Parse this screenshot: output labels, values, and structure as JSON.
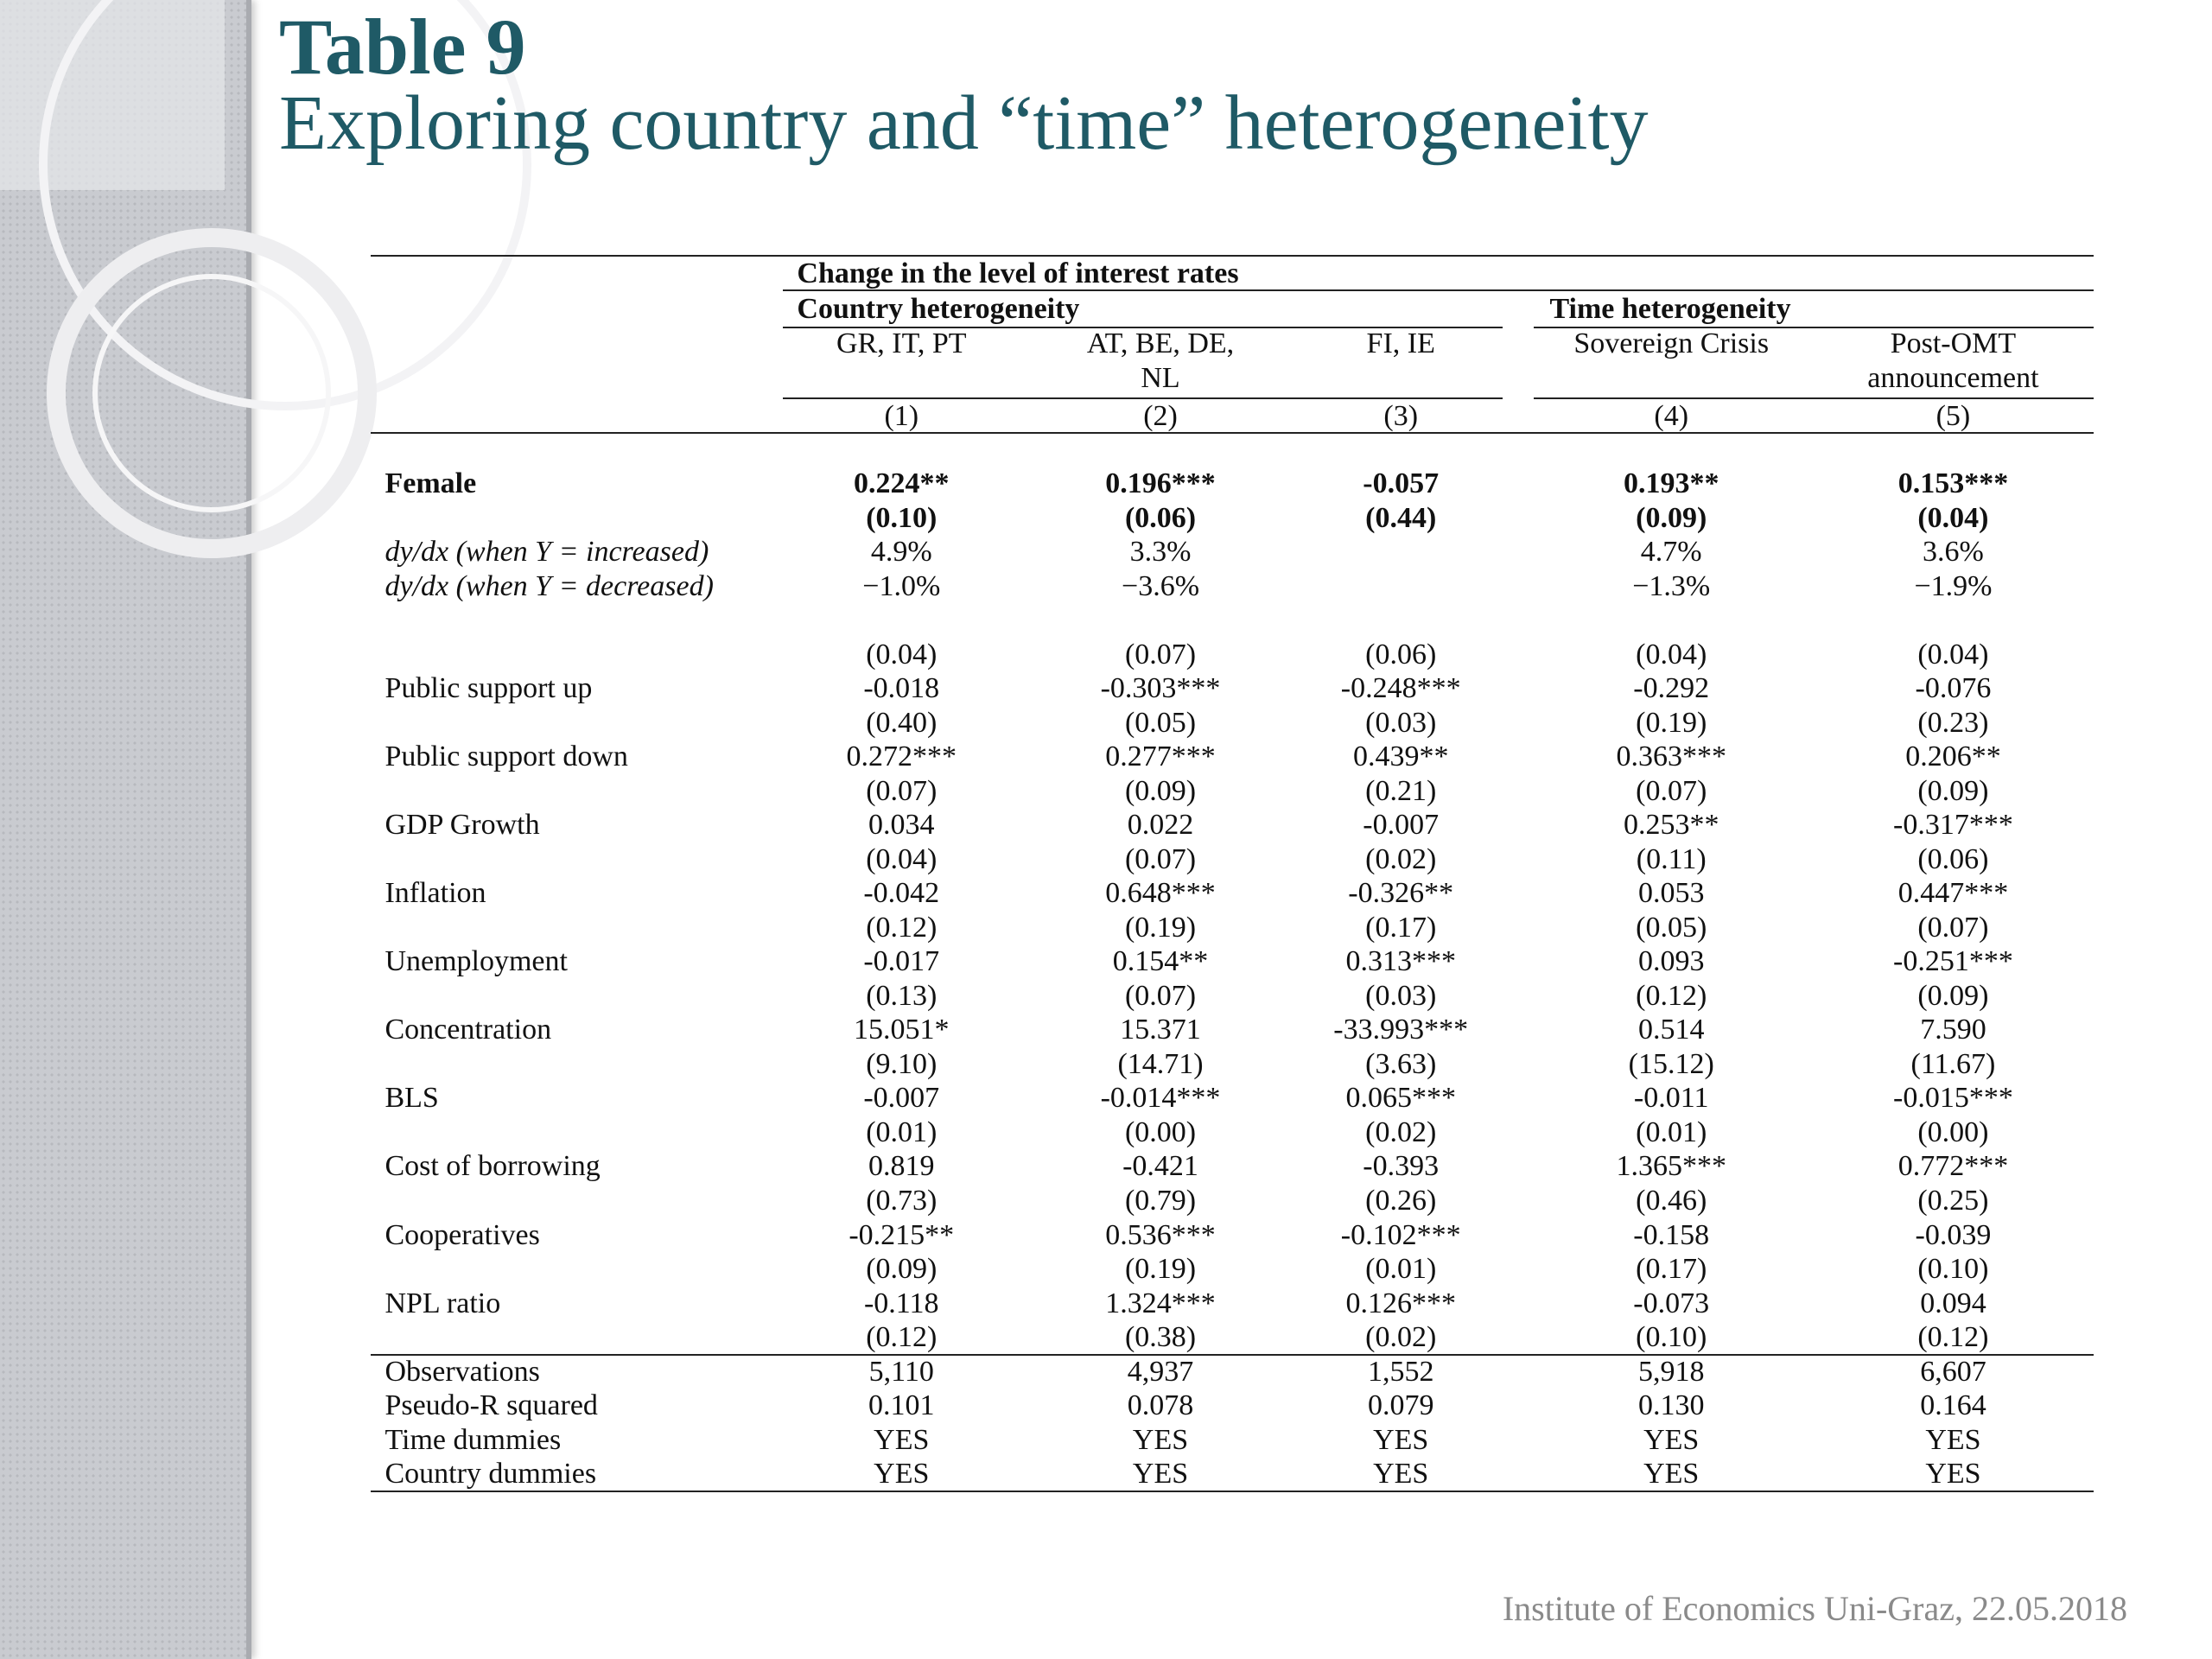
{
  "header": {
    "title": "Table 9",
    "subtitle": "Exploring country and “time” heterogeneity"
  },
  "table": {
    "spanner": "Change in the level of interest rates",
    "groups": [
      "Country heterogeneity",
      "Time heterogeneity"
    ],
    "columns": [
      [
        "GR, IT, PT"
      ],
      [
        "AT, BE, DE,",
        "NL"
      ],
      [
        "FI, IE"
      ],
      [
        "Sovereign Crisis"
      ],
      [
        "Post-OMT",
        "announcement"
      ]
    ],
    "numbers": [
      "(1)",
      "(2)",
      "(3)",
      "(4)",
      "(5)"
    ],
    "female": {
      "label": "Female",
      "coef": [
        "0.224**",
        "0.196***",
        "-0.057",
        "0.193**",
        "0.153***"
      ],
      "se": [
        "(0.10)",
        "(0.06)",
        "(0.44)",
        "(0.09)",
        "(0.04)"
      ]
    },
    "marginal_effects": [
      {
        "label": "dy/dx (when Y = increased)",
        "cells": [
          "4.9%",
          "3.3%",
          null,
          "4.7%",
          "3.6%"
        ]
      },
      {
        "label": "dy/dx (when Y = decreased)",
        "cells": [
          "−1.0%",
          "−3.6%",
          null,
          "−1.3%",
          "−1.9%"
        ]
      }
    ],
    "controls": [
      {
        "cells": [
          "(0.04)",
          "(0.07)",
          "(0.06)",
          "(0.04)",
          "(0.04)"
        ]
      },
      {
        "label": "Public support up",
        "cells": [
          "-0.018",
          "-0.303***",
          "-0.248***",
          "-0.292",
          "-0.076"
        ]
      },
      {
        "cells": [
          "(0.40)",
          "(0.05)",
          "(0.03)",
          "(0.19)",
          "(0.23)"
        ]
      },
      {
        "label": "Public support down",
        "cells": [
          "0.272***",
          "0.277***",
          "0.439**",
          "0.363***",
          "0.206**"
        ]
      },
      {
        "cells": [
          "(0.07)",
          "(0.09)",
          "(0.21)",
          "(0.07)",
          "(0.09)"
        ]
      },
      {
        "label": "GDP Growth",
        "cells": [
          "0.034",
          "0.022",
          "-0.007",
          "0.253**",
          "-0.317***"
        ]
      },
      {
        "cells": [
          "(0.04)",
          "(0.07)",
          "(0.02)",
          "(0.11)",
          "(0.06)"
        ]
      },
      {
        "label": "Inflation",
        "cells": [
          "-0.042",
          "0.648***",
          "-0.326**",
          "0.053",
          "0.447***"
        ]
      },
      {
        "cells": [
          "(0.12)",
          "(0.19)",
          "(0.17)",
          "(0.05)",
          "(0.07)"
        ]
      },
      {
        "label": "Unemployment",
        "cells": [
          "-0.017",
          "0.154**",
          "0.313***",
          "0.093",
          "-0.251***"
        ]
      },
      {
        "cells": [
          "(0.13)",
          "(0.07)",
          "(0.03)",
          "(0.12)",
          "(0.09)"
        ]
      },
      {
        "label": "Concentration",
        "cells": [
          "15.051*",
          "15.371",
          "-33.993***",
          "0.514",
          "7.590"
        ]
      },
      {
        "cells": [
          "(9.10)",
          "(14.71)",
          "(3.63)",
          "(15.12)",
          "(11.67)"
        ]
      },
      {
        "label": "BLS",
        "cells": [
          "-0.007",
          "-0.014***",
          "0.065***",
          "-0.011",
          "-0.015***"
        ]
      },
      {
        "cells": [
          "(0.01)",
          "(0.00)",
          "(0.02)",
          "(0.01)",
          "(0.00)"
        ]
      },
      {
        "label": "Cost of borrowing",
        "cells": [
          "0.819",
          "-0.421",
          "-0.393",
          "1.365***",
          "0.772***"
        ]
      },
      {
        "cells": [
          "(0.73)",
          "(0.79)",
          "(0.26)",
          "(0.46)",
          "(0.25)"
        ]
      },
      {
        "label": "Cooperatives",
        "cells": [
          "-0.215**",
          "0.536***",
          "-0.102***",
          "-0.158",
          "-0.039"
        ]
      },
      {
        "cells": [
          "(0.09)",
          "(0.19)",
          "(0.01)",
          "(0.17)",
          "(0.10)"
        ]
      },
      {
        "label": "NPL ratio",
        "cells": [
          "-0.118",
          "1.324***",
          "0.126***",
          "-0.073",
          "0.094"
        ]
      },
      {
        "cells": [
          "(0.12)",
          "(0.38)",
          "(0.02)",
          "(0.10)",
          "(0.12)"
        ]
      }
    ],
    "stats": [
      {
        "label": "Observations",
        "cells": [
          "5,110",
          "4,937",
          "1,552",
          "5,918",
          "6,607"
        ]
      },
      {
        "label": "Pseudo-R squared",
        "cells": [
          "0.101",
          "0.078",
          "0.079",
          "0.130",
          "0.164"
        ]
      },
      {
        "label": "Time dummies",
        "cells": [
          "YES",
          "YES",
          "YES",
          "YES",
          "YES"
        ]
      },
      {
        "label": "Country dummies",
        "cells": [
          "YES",
          "YES",
          "YES",
          "YES",
          "YES"
        ]
      }
    ]
  },
  "footer": "Institute of Economics Uni-Graz, 22.05.2018"
}
